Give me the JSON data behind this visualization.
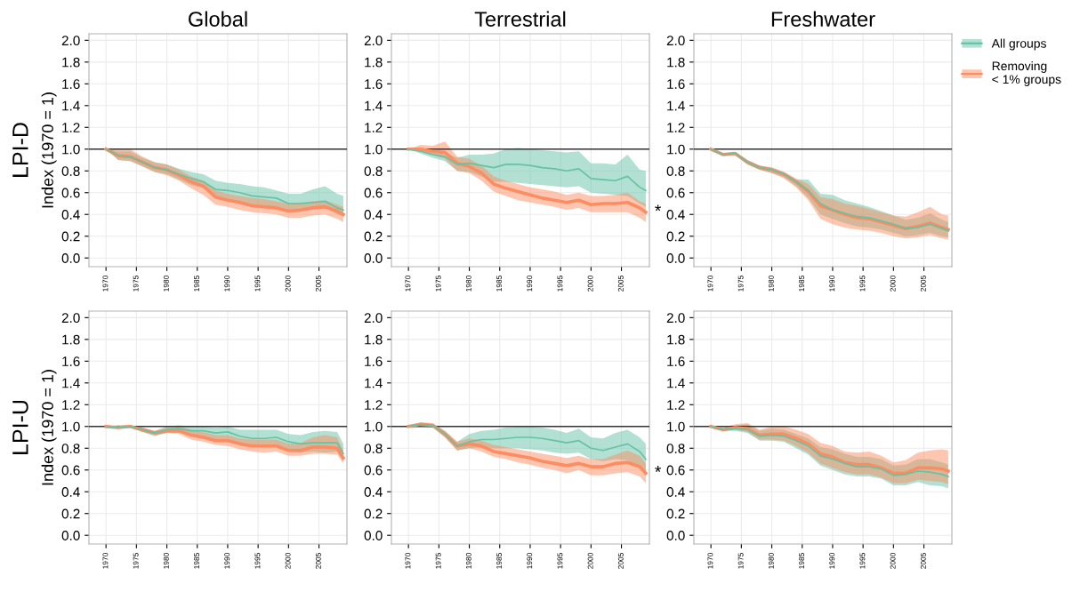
{
  "chart_data": [
    {
      "type": "line",
      "title": "Global",
      "ylabel": "Index (1970 = 1)",
      "annotations": [
        "LPI-D"
      ],
      "x": [
        1970,
        1972,
        1974,
        1976,
        1978,
        1980,
        1982,
        1984,
        1986,
        1988,
        1990,
        1992,
        1994,
        1996,
        1998,
        2000,
        2002,
        2004,
        2006,
        2008,
        2009
      ],
      "xlim": [
        1967.2,
        2009.6
      ],
      "xticks": [
        1970,
        1975,
        1980,
        1985,
        1990,
        1995,
        2000,
        2005
      ],
      "ylim": [
        -0.08,
        2.06
      ],
      "yticks": [
        {
          "value": 0,
          "label": "0.0"
        },
        0.2,
        0.4,
        0.6,
        0.8,
        {
          "value": 1,
          "label": "1.0"
        },
        1.2,
        1.4,
        1.6,
        1.8,
        {
          "value": 2,
          "label": "2.0"
        }
      ],
      "grid": true,
      "ref_lines": [
        {
          "axis": "y",
          "value": 1,
          "color": "#333333"
        }
      ],
      "series": [
        {
          "color": "#66c2a5",
          "values": [
            1.0,
            0.94,
            0.93,
            0.88,
            0.83,
            0.81,
            0.77,
            0.73,
            0.7,
            0.63,
            0.62,
            0.6,
            0.57,
            0.56,
            0.55,
            0.5,
            0.5,
            0.51,
            0.52,
            0.46,
            0.44
          ],
          "lower": [
            1.0,
            0.9,
            0.89,
            0.84,
            0.79,
            0.77,
            0.72,
            0.67,
            0.64,
            0.55,
            0.53,
            0.52,
            0.49,
            0.48,
            0.47,
            0.44,
            0.44,
            0.45,
            0.46,
            0.4,
            0.38
          ],
          "upper": [
            1.0,
            0.98,
            0.98,
            0.92,
            0.88,
            0.86,
            0.82,
            0.79,
            0.77,
            0.71,
            0.69,
            0.68,
            0.66,
            0.65,
            0.62,
            0.59,
            0.59,
            0.63,
            0.66,
            0.59,
            0.57
          ]
        },
        {
          "color": "#fc8d62",
          "values": [
            1.0,
            0.94,
            0.93,
            0.88,
            0.83,
            0.81,
            0.76,
            0.7,
            0.66,
            0.56,
            0.53,
            0.51,
            0.48,
            0.47,
            0.46,
            0.43,
            0.44,
            0.46,
            0.47,
            0.43,
            0.4
          ],
          "lower": [
            1.0,
            0.9,
            0.89,
            0.84,
            0.79,
            0.76,
            0.71,
            0.64,
            0.58,
            0.49,
            0.47,
            0.44,
            0.42,
            0.41,
            0.4,
            0.37,
            0.37,
            0.39,
            0.4,
            0.36,
            0.33
          ],
          "upper": [
            1.0,
            1.0,
            1.0,
            0.93,
            0.88,
            0.86,
            0.81,
            0.75,
            0.71,
            0.62,
            0.59,
            0.57,
            0.55,
            0.54,
            0.52,
            0.5,
            0.51,
            0.52,
            0.53,
            0.49,
            0.47
          ]
        }
      ]
    },
    {
      "type": "line",
      "title": "Terrestrial",
      "annotations": [
        "*"
      ],
      "x": [
        1970,
        1972,
        1974,
        1976,
        1978,
        1980,
        1982,
        1984,
        1986,
        1988,
        1990,
        1992,
        1994,
        1996,
        1998,
        2000,
        2002,
        2004,
        2006,
        2008,
        2009
      ],
      "xlim": [
        1967.2,
        2009.6
      ],
      "xticks": [
        1970,
        1975,
        1980,
        1985,
        1990,
        1995,
        2000,
        2005
      ],
      "ylim": [
        -0.08,
        2.06
      ],
      "yticks": [
        {
          "value": 0,
          "label": "0.0"
        },
        0.2,
        0.4,
        0.6,
        0.8,
        {
          "value": 1,
          "label": "1.0"
        },
        1.2,
        1.4,
        1.6,
        1.8,
        {
          "value": 2,
          "label": "2.0"
        }
      ],
      "grid": true,
      "ref_lines": [
        {
          "axis": "y",
          "value": 1,
          "color": "#333333"
        }
      ],
      "series": [
        {
          "color": "#66c2a5",
          "values": [
            1.0,
            0.98,
            0.95,
            0.93,
            0.86,
            0.87,
            0.85,
            0.83,
            0.86,
            0.86,
            0.85,
            0.83,
            0.82,
            0.8,
            0.82,
            0.73,
            0.72,
            0.71,
            0.75,
            0.65,
            0.62
          ],
          "lower": [
            1.0,
            0.96,
            0.92,
            0.89,
            0.8,
            0.79,
            0.75,
            0.7,
            0.7,
            0.69,
            0.68,
            0.67,
            0.66,
            0.65,
            0.66,
            0.6,
            0.59,
            0.58,
            0.57,
            0.5,
            0.47
          ],
          "upper": [
            1.0,
            1.01,
            0.99,
            0.97,
            0.92,
            0.95,
            0.95,
            0.96,
            1.0,
            1.01,
            1.0,
            0.99,
            0.98,
            0.97,
            0.98,
            0.87,
            0.87,
            0.86,
            0.95,
            0.81,
            0.8
          ]
        },
        {
          "color": "#fc8d62",
          "values": [
            1.0,
            1.0,
            0.98,
            0.97,
            0.87,
            0.84,
            0.78,
            0.68,
            0.64,
            0.61,
            0.58,
            0.55,
            0.53,
            0.51,
            0.53,
            0.49,
            0.5,
            0.5,
            0.51,
            0.46,
            0.42
          ],
          "lower": [
            1.0,
            0.98,
            0.95,
            0.91,
            0.8,
            0.78,
            0.71,
            0.61,
            0.57,
            0.53,
            0.51,
            0.49,
            0.47,
            0.44,
            0.46,
            0.42,
            0.42,
            0.42,
            0.42,
            0.37,
            0.33
          ],
          "upper": [
            1.0,
            1.04,
            1.03,
            1.07,
            0.93,
            0.91,
            0.85,
            0.75,
            0.71,
            0.68,
            0.65,
            0.63,
            0.61,
            0.58,
            0.6,
            0.57,
            0.57,
            0.58,
            0.6,
            0.52,
            0.5
          ]
        }
      ]
    },
    {
      "type": "line",
      "title": "Freshwater",
      "legend": "right",
      "x": [
        1970,
        1972,
        1974,
        1976,
        1978,
        1980,
        1982,
        1984,
        1986,
        1988,
        1990,
        1992,
        1994,
        1996,
        1998,
        2000,
        2002,
        2004,
        2006,
        2008,
        2009
      ],
      "xlim": [
        1967.2,
        2009.6
      ],
      "xticks": [
        1970,
        1975,
        1980,
        1985,
        1990,
        1995,
        2000,
        2005
      ],
      "ylim": [
        -0.08,
        2.06
      ],
      "yticks": [
        {
          "value": 0,
          "label": "0.0"
        },
        0.2,
        0.4,
        0.6,
        0.8,
        {
          "value": 1,
          "label": "1.0"
        },
        1.2,
        1.4,
        1.6,
        1.8,
        {
          "value": 2,
          "label": "2.0"
        }
      ],
      "grid": true,
      "ref_lines": [
        {
          "axis": "y",
          "value": 1,
          "color": "#333333"
        }
      ],
      "series": [
        {
          "name": "All groups",
          "color": "#66c2a5",
          "values": [
            1.0,
            0.95,
            0.96,
            0.88,
            0.83,
            0.81,
            0.77,
            0.7,
            0.62,
            0.5,
            0.44,
            0.41,
            0.38,
            0.37,
            0.34,
            0.31,
            0.27,
            0.28,
            0.31,
            0.27,
            0.25
          ],
          "lower": [
            1.0,
            0.94,
            0.95,
            0.86,
            0.81,
            0.78,
            0.74,
            0.66,
            0.55,
            0.4,
            0.36,
            0.32,
            0.29,
            0.28,
            0.26,
            0.23,
            0.2,
            0.21,
            0.23,
            0.2,
            0.19
          ],
          "upper": [
            1.0,
            0.96,
            0.97,
            0.9,
            0.85,
            0.83,
            0.79,
            0.72,
            0.72,
            0.59,
            0.58,
            0.53,
            0.5,
            0.47,
            0.43,
            0.39,
            0.35,
            0.37,
            0.41,
            0.35,
            0.33
          ]
        },
        {
          "name": "Removing\n< 1% groups",
          "color": "#fc8d62",
          "values": [
            1.0,
            0.95,
            0.96,
            0.88,
            0.83,
            0.81,
            0.77,
            0.7,
            0.61,
            0.48,
            0.44,
            0.4,
            0.37,
            0.36,
            0.33,
            0.3,
            0.27,
            0.29,
            0.32,
            0.28,
            0.26
          ],
          "lower": [
            1.0,
            0.94,
            0.95,
            0.86,
            0.81,
            0.78,
            0.73,
            0.65,
            0.53,
            0.36,
            0.31,
            0.28,
            0.26,
            0.25,
            0.23,
            0.2,
            0.18,
            0.19,
            0.21,
            0.18,
            0.17
          ],
          "upper": [
            1.0,
            0.96,
            0.97,
            0.9,
            0.85,
            0.83,
            0.79,
            0.73,
            0.68,
            0.56,
            0.54,
            0.5,
            0.48,
            0.45,
            0.42,
            0.39,
            0.38,
            0.42,
            0.47,
            0.4,
            0.39
          ]
        }
      ]
    },
    {
      "type": "line",
      "ylabel": "Index (1970 = 1)",
      "annotations": [
        "LPI-U"
      ],
      "x": [
        1970,
        1972,
        1974,
        1976,
        1978,
        1980,
        1982,
        1984,
        1986,
        1988,
        1990,
        1992,
        1994,
        1996,
        1998,
        2000,
        2002,
        2004,
        2006,
        2008,
        2009
      ],
      "xlim": [
        1967.2,
        2009.6
      ],
      "xticks": [
        1970,
        1975,
        1980,
        1985,
        1990,
        1995,
        2000,
        2005
      ],
      "ylim": [
        -0.08,
        2.06
      ],
      "yticks": [
        {
          "value": 0,
          "label": "0.0"
        },
        0.2,
        0.4,
        0.6,
        0.8,
        {
          "value": 1,
          "label": "1.0"
        },
        1.2,
        1.4,
        1.6,
        1.8,
        {
          "value": 2,
          "label": "2.0"
        }
      ],
      "grid": true,
      "ref_lines": [
        {
          "axis": "y",
          "value": 1,
          "color": "#333333"
        }
      ],
      "series": [
        {
          "color": "#66c2a5",
          "values": [
            1.0,
            0.99,
            1.0,
            0.97,
            0.94,
            0.97,
            0.98,
            0.96,
            0.96,
            0.94,
            0.95,
            0.91,
            0.89,
            0.89,
            0.9,
            0.86,
            0.84,
            0.85,
            0.85,
            0.85,
            0.75
          ],
          "lower": [
            1.0,
            0.98,
            0.99,
            0.95,
            0.91,
            0.94,
            0.94,
            0.92,
            0.91,
            0.87,
            0.87,
            0.83,
            0.82,
            0.81,
            0.82,
            0.77,
            0.76,
            0.77,
            0.76,
            0.77,
            0.68
          ],
          "upper": [
            1.0,
            1.01,
            1.01,
            0.99,
            0.96,
            1.0,
            1.01,
            1.0,
            1.0,
            0.99,
            1.0,
            0.97,
            0.97,
            0.97,
            0.97,
            0.93,
            0.92,
            0.95,
            0.96,
            0.95,
            0.84
          ]
        },
        {
          "color": "#fc8d62",
          "values": [
            1.0,
            0.99,
            1.0,
            0.97,
            0.94,
            0.96,
            0.96,
            0.92,
            0.9,
            0.87,
            0.87,
            0.84,
            0.82,
            0.82,
            0.82,
            0.78,
            0.78,
            0.81,
            0.81,
            0.8,
            0.71
          ],
          "lower": [
            1.0,
            0.98,
            0.99,
            0.95,
            0.92,
            0.94,
            0.93,
            0.88,
            0.86,
            0.83,
            0.82,
            0.79,
            0.77,
            0.76,
            0.77,
            0.73,
            0.73,
            0.75,
            0.75,
            0.74,
            0.66
          ],
          "upper": [
            1.0,
            1.01,
            1.01,
            0.99,
            0.96,
            0.99,
            1.0,
            0.97,
            0.95,
            0.92,
            0.92,
            0.89,
            0.88,
            0.88,
            0.88,
            0.84,
            0.85,
            0.9,
            0.92,
            0.9,
            0.78
          ]
        }
      ]
    },
    {
      "type": "line",
      "annotations": [
        "*"
      ],
      "x": [
        1970,
        1972,
        1974,
        1976,
        1978,
        1980,
        1982,
        1984,
        1986,
        1988,
        1990,
        1992,
        1994,
        1996,
        1998,
        2000,
        2002,
        2004,
        2006,
        2008,
        2009
      ],
      "xlim": [
        1967.2,
        2009.6
      ],
      "xticks": [
        1970,
        1975,
        1980,
        1985,
        1990,
        1995,
        2000,
        2005
      ],
      "ylim": [
        -0.08,
        2.06
      ],
      "yticks": [
        {
          "value": 0,
          "label": "0.0"
        },
        0.2,
        0.4,
        0.6,
        0.8,
        {
          "value": 1,
          "label": "1.0"
        },
        1.2,
        1.4,
        1.6,
        1.8,
        {
          "value": 2,
          "label": "2.0"
        }
      ],
      "grid": true,
      "ref_lines": [
        {
          "axis": "y",
          "value": 1,
          "color": "#333333"
        }
      ],
      "series": [
        {
          "color": "#66c2a5",
          "values": [
            1.0,
            1.02,
            1.01,
            0.93,
            0.82,
            0.86,
            0.88,
            0.88,
            0.89,
            0.9,
            0.9,
            0.89,
            0.87,
            0.85,
            0.87,
            0.8,
            0.78,
            0.81,
            0.84,
            0.77,
            0.7
          ],
          "lower": [
            1.0,
            1.0,
            0.99,
            0.9,
            0.78,
            0.8,
            0.81,
            0.8,
            0.8,
            0.8,
            0.79,
            0.78,
            0.76,
            0.75,
            0.76,
            0.7,
            0.68,
            0.7,
            0.69,
            0.63,
            0.58
          ],
          "upper": [
            1.0,
            1.03,
            1.02,
            0.96,
            0.86,
            0.93,
            0.96,
            0.97,
            0.99,
            1.0,
            1.0,
            0.99,
            0.97,
            0.94,
            0.98,
            0.9,
            0.89,
            0.94,
            0.97,
            0.9,
            0.84
          ]
        },
        {
          "color": "#fc8d62",
          "values": [
            1.0,
            1.02,
            1.01,
            0.93,
            0.82,
            0.84,
            0.82,
            0.77,
            0.75,
            0.73,
            0.71,
            0.68,
            0.66,
            0.64,
            0.66,
            0.63,
            0.63,
            0.66,
            0.67,
            0.63,
            0.57
          ],
          "lower": [
            1.0,
            1.0,
            0.99,
            0.9,
            0.78,
            0.8,
            0.77,
            0.72,
            0.7,
            0.67,
            0.65,
            0.62,
            0.6,
            0.57,
            0.6,
            0.55,
            0.55,
            0.57,
            0.58,
            0.54,
            0.48
          ],
          "upper": [
            1.0,
            1.04,
            1.03,
            0.96,
            0.86,
            0.89,
            0.87,
            0.83,
            0.81,
            0.79,
            0.77,
            0.75,
            0.73,
            0.71,
            0.73,
            0.7,
            0.7,
            0.74,
            0.78,
            0.73,
            0.66
          ]
        }
      ]
    },
    {
      "type": "line",
      "x": [
        1970,
        1972,
        1974,
        1976,
        1978,
        1980,
        1982,
        1984,
        1986,
        1988,
        1990,
        1992,
        1994,
        1996,
        1998,
        2000,
        2002,
        2004,
        2006,
        2008,
        2009
      ],
      "xlim": [
        1967.2,
        2009.6
      ],
      "xticks": [
        1970,
        1975,
        1980,
        1985,
        1990,
        1995,
        2000,
        2005
      ],
      "ylim": [
        -0.08,
        2.06
      ],
      "yticks": [
        {
          "value": 0,
          "label": "0.0"
        },
        0.2,
        0.4,
        0.6,
        0.8,
        {
          "value": 1,
          "label": "1.0"
        },
        1.2,
        1.4,
        1.6,
        1.8,
        {
          "value": 2,
          "label": "2.0"
        }
      ],
      "grid": true,
      "ref_lines": [
        {
          "axis": "y",
          "value": 1,
          "color": "#333333"
        }
      ],
      "series": [
        {
          "color": "#66c2a5",
          "values": [
            1.0,
            0.97,
            0.98,
            0.97,
            0.91,
            0.92,
            0.91,
            0.87,
            0.82,
            0.73,
            0.7,
            0.66,
            0.63,
            0.63,
            0.61,
            0.55,
            0.56,
            0.59,
            0.58,
            0.56,
            0.54
          ],
          "lower": [
            1.0,
            0.96,
            0.96,
            0.94,
            0.87,
            0.87,
            0.86,
            0.8,
            0.74,
            0.64,
            0.6,
            0.56,
            0.54,
            0.54,
            0.52,
            0.46,
            0.46,
            0.49,
            0.46,
            0.45,
            0.43
          ],
          "upper": [
            1.0,
            0.98,
            1.01,
            1.02,
            0.96,
            0.98,
            0.97,
            0.93,
            0.89,
            0.81,
            0.79,
            0.75,
            0.72,
            0.72,
            0.7,
            0.64,
            0.65,
            0.7,
            0.7,
            0.67,
            0.65
          ]
        },
        {
          "color": "#fc8d62",
          "values": [
            1.0,
            0.97,
            0.99,
            0.98,
            0.92,
            0.93,
            0.93,
            0.89,
            0.84,
            0.75,
            0.72,
            0.67,
            0.65,
            0.65,
            0.62,
            0.57,
            0.57,
            0.62,
            0.62,
            0.61,
            0.59
          ],
          "lower": [
            1.0,
            0.96,
            0.97,
            0.95,
            0.88,
            0.88,
            0.87,
            0.82,
            0.76,
            0.66,
            0.62,
            0.58,
            0.56,
            0.56,
            0.53,
            0.48,
            0.48,
            0.51,
            0.5,
            0.49,
            0.47
          ],
          "upper": [
            1.0,
            0.99,
            1.02,
            1.03,
            0.97,
            1.0,
            1.0,
            0.97,
            0.93,
            0.85,
            0.82,
            0.77,
            0.76,
            0.77,
            0.73,
            0.67,
            0.69,
            0.76,
            0.78,
            0.79,
            0.78
          ]
        }
      ]
    }
  ]
}
